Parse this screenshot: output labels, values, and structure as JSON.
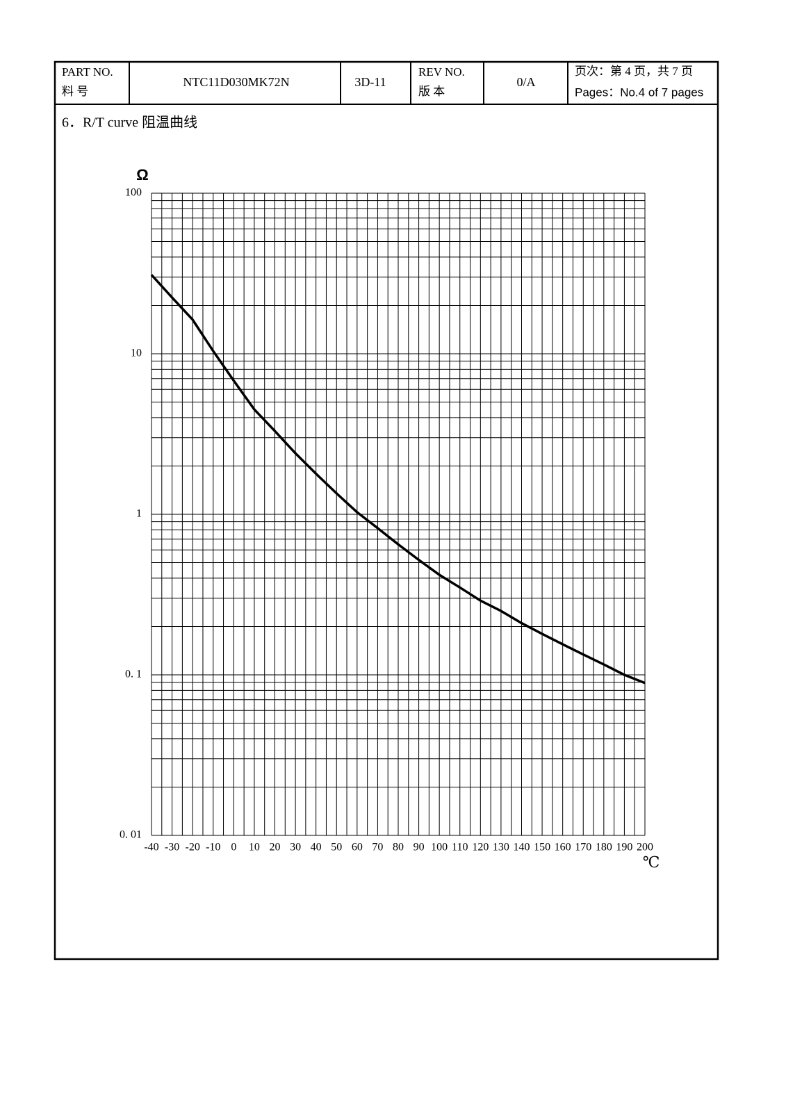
{
  "header": {
    "part_no_label": "PART NO.",
    "part_no_label_cn": "料 号",
    "part_no": "NTC11D030MK72N",
    "code": "3D-11",
    "rev_no_label": "REV NO.",
    "rev_no_label_cn": "版 本",
    "rev_no": "0/A",
    "pages_cn": "页次：第 4 页，共 7 页",
    "pages_en": "Pages：No.4 of 7 pages"
  },
  "section_title": "6．R/T curve  阻温曲线",
  "chart_data": {
    "type": "line",
    "ylabel": "Ω",
    "xlabel": "℃",
    "x": [
      -40,
      -30,
      -20,
      -10,
      0,
      10,
      20,
      30,
      40,
      50,
      60,
      70,
      80,
      90,
      100,
      110,
      120,
      130,
      140,
      150,
      160,
      170,
      180,
      190,
      200
    ],
    "series": [
      {
        "name": "R/T",
        "color": "#000000",
        "values": [
          31,
          22.4,
          16.3,
          10.4,
          6.8,
          4.5,
          3.3,
          2.4,
          1.79,
          1.35,
          1.03,
          0.82,
          0.65,
          0.52,
          0.42,
          0.35,
          0.29,
          0.25,
          0.21,
          0.18,
          0.155,
          0.134,
          0.116,
          0.1,
          0.089
        ]
      }
    ],
    "xlim": [
      -40,
      200
    ],
    "xticks": [
      -40,
      -30,
      -20,
      -10,
      0,
      10,
      20,
      30,
      40,
      50,
      60,
      70,
      80,
      90,
      100,
      110,
      120,
      130,
      140,
      150,
      160,
      170,
      180,
      190,
      200
    ],
    "ylim": [
      0.01,
      100
    ],
    "yticks": [
      {
        "value": 0.01,
        "label": "0. 01"
      },
      {
        "value": 0.1,
        "label": "0. 1"
      },
      1,
      10,
      100
    ],
    "ylog": true,
    "grid": true
  }
}
